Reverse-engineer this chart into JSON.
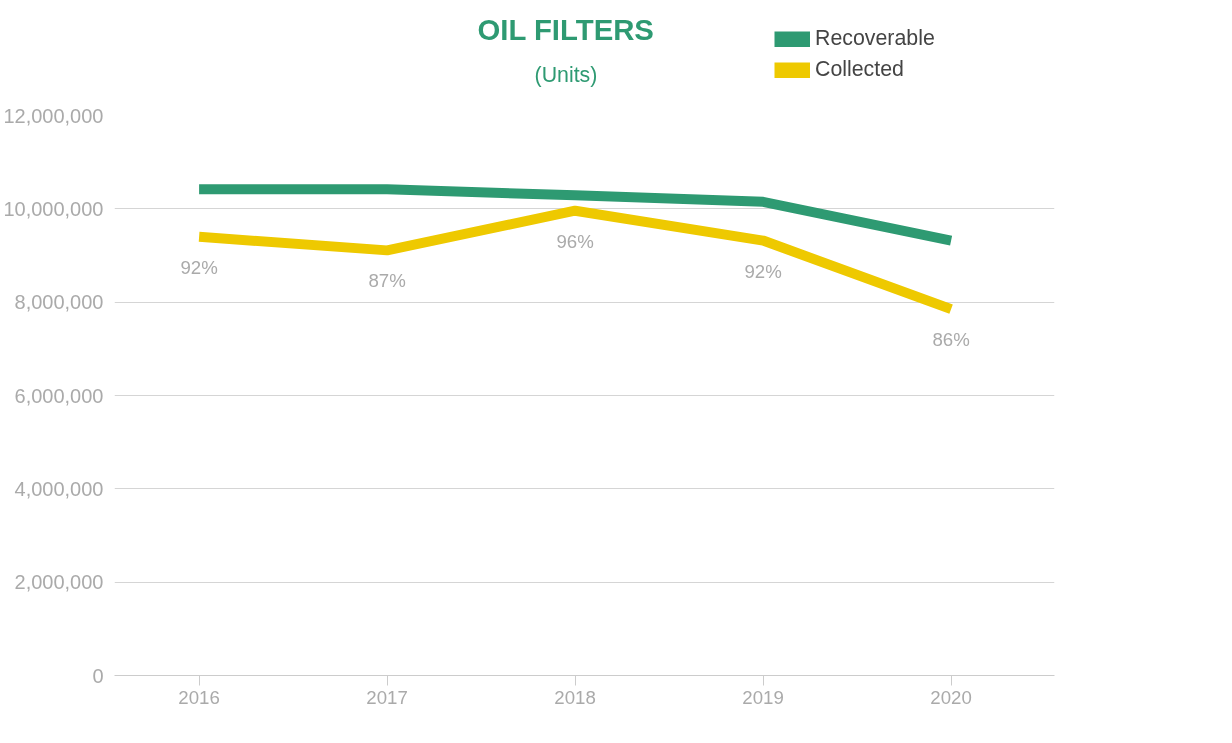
{
  "chart_data": {
    "type": "line",
    "title": "OIL FILTERS",
    "subtitle": "(Units)",
    "categories": [
      "2016",
      "2017",
      "2018",
      "2019",
      "2020"
    ],
    "series": [
      {
        "name": "Recoverable",
        "color": "#2e9a72",
        "values": [
          10420000,
          10420000,
          10290000,
          10150000,
          9320000
        ]
      },
      {
        "name": "Collected",
        "color": "#eec900",
        "values": [
          9400000,
          9110000,
          9960000,
          9320000,
          7850000
        ]
      }
    ],
    "annotations": [
      {
        "text": "92%",
        "x": "2016",
        "y": 9400000
      },
      {
        "text": "87%",
        "x": "2017",
        "y": 9110000
      },
      {
        "text": "96%",
        "x": "2018",
        "y": 9960000
      },
      {
        "text": "92%",
        "x": "2019",
        "y": 9320000
      },
      {
        "text": "86%",
        "x": "2020",
        "y": 7850000
      }
    ],
    "ylim": [
      0,
      12000000
    ],
    "yticks": [
      {
        "value": 0,
        "label": "0"
      },
      {
        "value": 2000000,
        "label": "2,000,000"
      },
      {
        "value": 4000000,
        "label": "4,000,000"
      },
      {
        "value": 6000000,
        "label": "6,000,000"
      },
      {
        "value": 8000000,
        "label": "8,000,000"
      },
      {
        "value": 10000000,
        "label": "10,000,000"
      },
      {
        "value": 12000000,
        "label": "12,000,000"
      }
    ],
    "grid": "y",
    "legend": "top",
    "marker": "none",
    "line_style": "solid"
  }
}
